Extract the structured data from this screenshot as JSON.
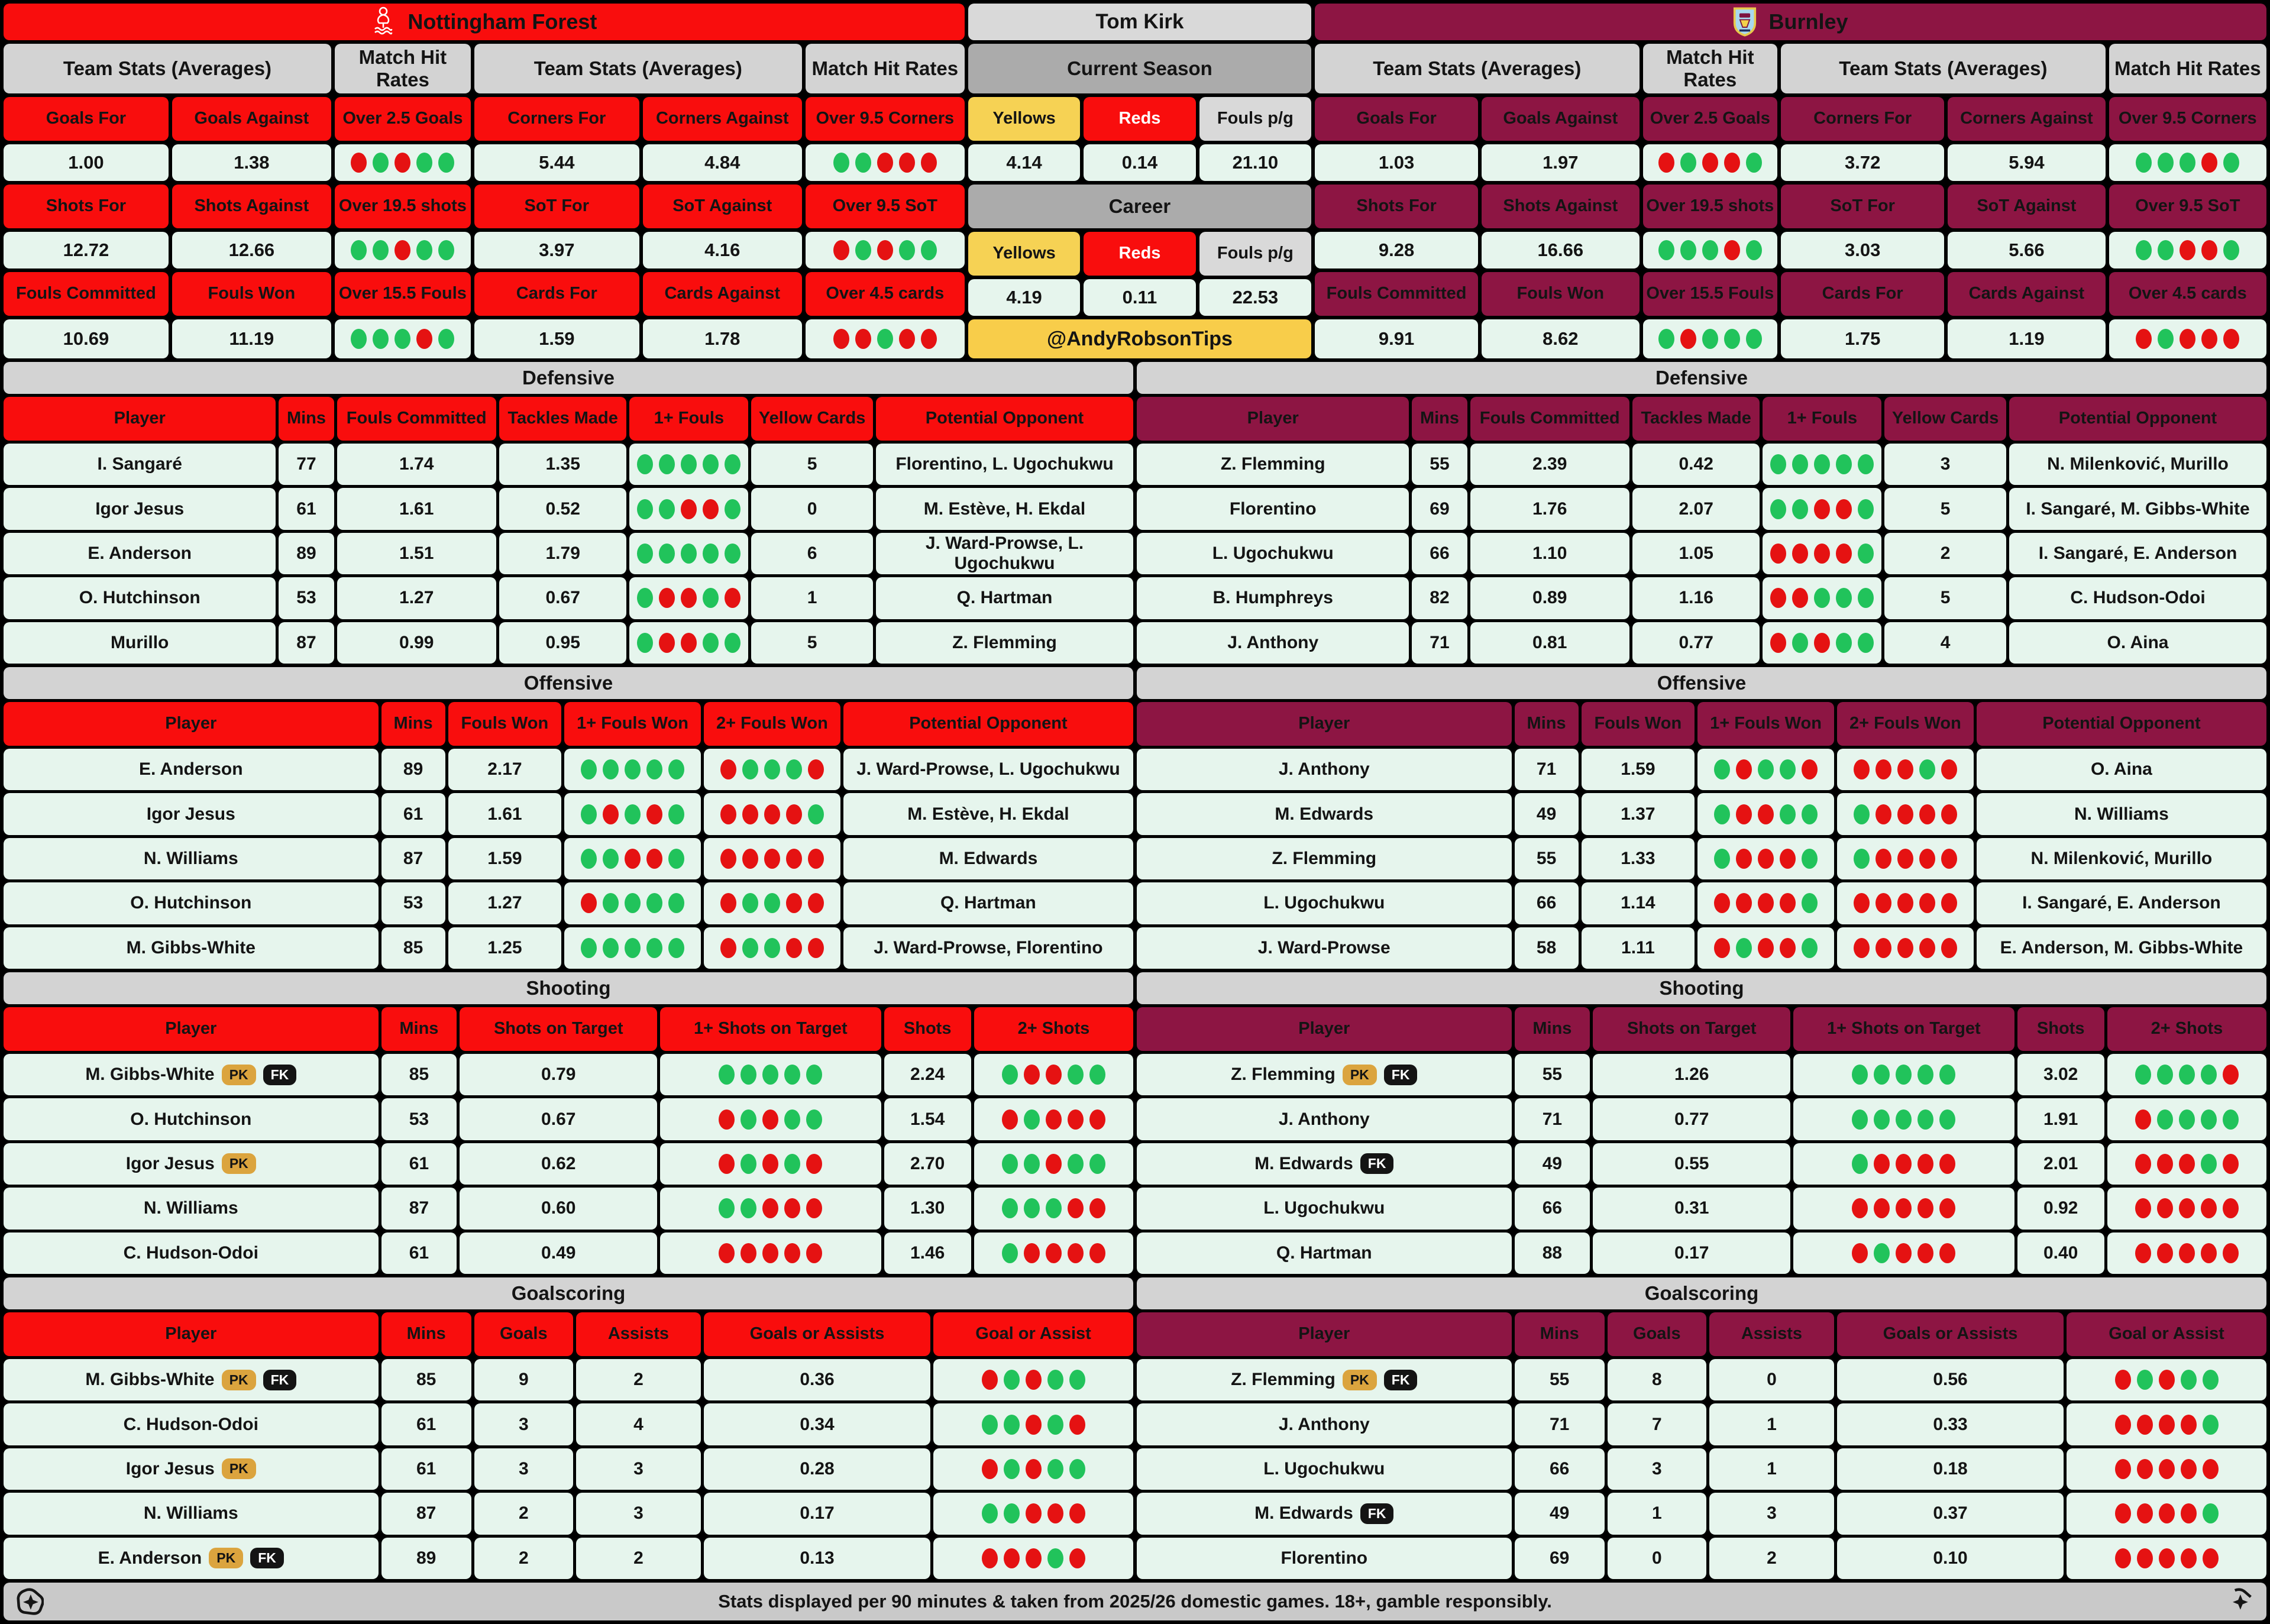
{
  "colors": {
    "forest_red": "#f90d0d",
    "burnley_claret": "#8d1543",
    "dot_green": "#21c35b",
    "dot_red": "#e51212",
    "cell_mint": "#e6f5ed",
    "badge_gold": "#dba43e",
    "yellow_header": "#f6d254",
    "handle_yellow": "#f8cd4a"
  },
  "header": {
    "left_team": "Nottingham Forest",
    "right_team": "Burnley"
  },
  "team_stats": {
    "group_headers": [
      "Team Stats (Averages)",
      "Match Hit Rates",
      "Team Stats (Averages)",
      "Match Hit Rates"
    ],
    "stat_headers": [
      [
        "Goals For",
        "Goals Against",
        "Over 2.5 Goals",
        "Corners For",
        "Corners Against",
        "Over 9.5 Corners"
      ],
      [
        "Shots For",
        "Shots Against",
        "Over 19.5 shots",
        "SoT For",
        "SoT Against",
        "Over 9.5 SoT"
      ],
      [
        "Fouls Committed",
        "Fouls Won",
        "Over 15.5 Fouls",
        "Cards For",
        "Cards Against",
        "Over 4.5 cards"
      ]
    ],
    "left_rows": [
      [
        "1.00",
        "1.38",
        {
          "dots": "RGRGG"
        },
        "5.44",
        "4.84",
        {
          "dots": "GGRRR"
        }
      ],
      [
        "12.72",
        "12.66",
        {
          "dots": "GGRGG"
        },
        "3.97",
        "4.16",
        {
          "dots": "RGRGG"
        }
      ],
      [
        "10.69",
        "11.19",
        {
          "dots": "GGGRG"
        },
        "1.59",
        "1.78",
        {
          "dots": "RRGRR"
        }
      ]
    ],
    "right_rows": [
      [
        "1.03",
        "1.97",
        {
          "dots": "RGRRG"
        },
        "3.72",
        "5.94",
        {
          "dots": "GGGRG"
        }
      ],
      [
        "9.28",
        "16.66",
        {
          "dots": "GGGRG"
        },
        "3.03",
        "5.66",
        {
          "dots": "GGRRG"
        }
      ],
      [
        "9.91",
        "8.62",
        {
          "dots": "GRGGG"
        },
        "1.75",
        "1.19",
        {
          "dots": "RGRRR"
        }
      ]
    ]
  },
  "referee": {
    "name": "Tom Kirk",
    "current_season_label": "Current Season",
    "career_label": "Career",
    "cols": {
      "yellows": "Yellows",
      "reds": "Reds",
      "fouls": "Fouls p/g"
    },
    "current": {
      "yellows": "4.14",
      "reds": "0.14",
      "fouls": "21.10"
    },
    "career": {
      "yellows": "4.19",
      "reds": "0.11",
      "fouls": "22.53"
    },
    "handle": "@AndyRobsonTips"
  },
  "sections": {
    "defensive": {
      "title": "Defensive",
      "headers": [
        "Player",
        "Mins",
        "Fouls Committed",
        "Tackles Made",
        "1+ Fouls",
        "Yellow Cards",
        "Potential Opponent"
      ]
    },
    "offensive": {
      "title": "Offensive",
      "headers": [
        "Player",
        "Mins",
        "Fouls Won",
        "1+ Fouls Won",
        "2+ Fouls Won",
        "Potential Opponent"
      ]
    },
    "shooting": {
      "title": "Shooting",
      "headers": [
        "Player",
        "Mins",
        "Shots on Target",
        "1+ Shots on Target",
        "Shots",
        "2+ Shots"
      ]
    },
    "goalscoring": {
      "title": "Goalscoring",
      "headers": [
        "Player",
        "Mins",
        "Goals",
        "Assists",
        "Goals or Assists",
        "Goal or Assist"
      ]
    }
  },
  "left": {
    "defensive": [
      {
        "player": "I. Sangaré",
        "badges": [],
        "cells": [
          "77",
          "1.74",
          "1.35",
          {
            "dots": "GGGGG"
          },
          "5",
          "Florentino, L. Ugochukwu"
        ]
      },
      {
        "player": "Igor Jesus",
        "badges": [],
        "cells": [
          "61",
          "1.61",
          "0.52",
          {
            "dots": "GGRRG"
          },
          "0",
          "M. Estève, H. Ekdal"
        ]
      },
      {
        "player": "E. Anderson",
        "badges": [],
        "cells": [
          "89",
          "1.51",
          "1.79",
          {
            "dots": "GGGGG"
          },
          "6",
          "J. Ward-Prowse, L. Ugochukwu"
        ]
      },
      {
        "player": "O. Hutchinson",
        "badges": [],
        "cells": [
          "53",
          "1.27",
          "0.67",
          {
            "dots": "GRRGR"
          },
          "1",
          "Q. Hartman"
        ]
      },
      {
        "player": "Murillo",
        "badges": [],
        "cells": [
          "87",
          "0.99",
          "0.95",
          {
            "dots": "GRRGG"
          },
          "5",
          "Z. Flemming"
        ]
      }
    ],
    "offensive": [
      {
        "player": "E. Anderson",
        "badges": [],
        "cells": [
          "89",
          "2.17",
          {
            "dots": "GGGGG"
          },
          {
            "dots": "RGGGR"
          },
          "J. Ward-Prowse, L. Ugochukwu"
        ]
      },
      {
        "player": "Igor Jesus",
        "badges": [],
        "cells": [
          "61",
          "1.61",
          {
            "dots": "GRGRG"
          },
          {
            "dots": "RRRRG"
          },
          "M. Estève, H. Ekdal"
        ]
      },
      {
        "player": "N. Williams",
        "badges": [],
        "cells": [
          "87",
          "1.59",
          {
            "dots": "GGRRG"
          },
          {
            "dots": "RRRRR"
          },
          "M. Edwards"
        ]
      },
      {
        "player": "O. Hutchinson",
        "badges": [],
        "cells": [
          "53",
          "1.27",
          {
            "dots": "RGGGG"
          },
          {
            "dots": "RGGRR"
          },
          "Q. Hartman"
        ]
      },
      {
        "player": "M. Gibbs-White",
        "badges": [],
        "cells": [
          "85",
          "1.25",
          {
            "dots": "GGGGG"
          },
          {
            "dots": "RGGRR"
          },
          "J. Ward-Prowse, Florentino"
        ]
      }
    ],
    "shooting": [
      {
        "player": "M. Gibbs-White",
        "badges": [
          "PK",
          "FK"
        ],
        "cells": [
          "85",
          "0.79",
          {
            "dots": "GGGGG"
          },
          "2.24",
          {
            "dots": "GRRGG"
          }
        ]
      },
      {
        "player": "O. Hutchinson",
        "badges": [],
        "cells": [
          "53",
          "0.67",
          {
            "dots": "RGRGG"
          },
          "1.54",
          {
            "dots": "RGRRR"
          }
        ]
      },
      {
        "player": "Igor Jesus",
        "badges": [
          "PK"
        ],
        "cells": [
          "61",
          "0.62",
          {
            "dots": "RGRGR"
          },
          "2.70",
          {
            "dots": "GGRGG"
          }
        ]
      },
      {
        "player": "N. Williams",
        "badges": [],
        "cells": [
          "87",
          "0.60",
          {
            "dots": "GGRRR"
          },
          "1.30",
          {
            "dots": "GGGRR"
          }
        ]
      },
      {
        "player": "C. Hudson-Odoi",
        "badges": [],
        "cells": [
          "61",
          "0.49",
          {
            "dots": "RRRRR"
          },
          "1.46",
          {
            "dots": "GRRRR"
          }
        ]
      }
    ],
    "goalscoring": [
      {
        "player": "M. Gibbs-White",
        "badges": [
          "PK",
          "FK"
        ],
        "cells": [
          "85",
          "9",
          "2",
          "0.36",
          {
            "dots": "RGRGG"
          }
        ]
      },
      {
        "player": "C. Hudson-Odoi",
        "badges": [],
        "cells": [
          "61",
          "3",
          "4",
          "0.34",
          {
            "dots": "GGRGR"
          }
        ]
      },
      {
        "player": "Igor Jesus",
        "badges": [
          "PK"
        ],
        "cells": [
          "61",
          "3",
          "3",
          "0.28",
          {
            "dots": "RGRGG"
          }
        ]
      },
      {
        "player": "N. Williams",
        "badges": [],
        "cells": [
          "87",
          "2",
          "3",
          "0.17",
          {
            "dots": "GGRRR"
          }
        ]
      },
      {
        "player": "E. Anderson",
        "badges": [
          "PK",
          "FK"
        ],
        "cells": [
          "89",
          "2",
          "2",
          "0.13",
          {
            "dots": "RRRGR"
          }
        ]
      }
    ]
  },
  "right": {
    "defensive": [
      {
        "player": "Z. Flemming",
        "badges": [],
        "cells": [
          "55",
          "2.39",
          "0.42",
          {
            "dots": "GGGGG"
          },
          "3",
          "N. Milenković, Murillo"
        ]
      },
      {
        "player": "Florentino",
        "badges": [],
        "cells": [
          "69",
          "1.76",
          "2.07",
          {
            "dots": "GGRRG"
          },
          "5",
          "I. Sangaré, M. Gibbs-White"
        ]
      },
      {
        "player": "L. Ugochukwu",
        "badges": [],
        "cells": [
          "66",
          "1.10",
          "1.05",
          {
            "dots": "RRRRG"
          },
          "2",
          "I. Sangaré, E. Anderson"
        ]
      },
      {
        "player": "B. Humphreys",
        "badges": [],
        "cells": [
          "82",
          "0.89",
          "1.16",
          {
            "dots": "RRGGG"
          },
          "5",
          "C. Hudson-Odoi"
        ]
      },
      {
        "player": "J. Anthony",
        "badges": [],
        "cells": [
          "71",
          "0.81",
          "0.77",
          {
            "dots": "RGRGG"
          },
          "4",
          "O. Aina"
        ]
      }
    ],
    "offensive": [
      {
        "player": "J. Anthony",
        "badges": [],
        "cells": [
          "71",
          "1.59",
          {
            "dots": "GRGGR"
          },
          {
            "dots": "RRRGR"
          },
          "O. Aina"
        ]
      },
      {
        "player": "M. Edwards",
        "badges": [],
        "cells": [
          "49",
          "1.37",
          {
            "dots": "GRRGG"
          },
          {
            "dots": "GRRRR"
          },
          "N. Williams"
        ]
      },
      {
        "player": "Z. Flemming",
        "badges": [],
        "cells": [
          "55",
          "1.33",
          {
            "dots": "GRRRG"
          },
          {
            "dots": "GRRRR"
          },
          "N. Milenković, Murillo"
        ]
      },
      {
        "player": "L. Ugochukwu",
        "badges": [],
        "cells": [
          "66",
          "1.14",
          {
            "dots": "RRRRG"
          },
          {
            "dots": "RRRRR"
          },
          "I. Sangaré, E. Anderson"
        ]
      },
      {
        "player": "J. Ward-Prowse",
        "badges": [],
        "cells": [
          "58",
          "1.11",
          {
            "dots": "RGRRG"
          },
          {
            "dots": "RRRRR"
          },
          "E. Anderson, M. Gibbs-White"
        ]
      }
    ],
    "shooting": [
      {
        "player": "Z. Flemming",
        "badges": [
          "PK",
          "FK"
        ],
        "cells": [
          "55",
          "1.26",
          {
            "dots": "GGGGG"
          },
          "3.02",
          {
            "dots": "GGGGR"
          }
        ]
      },
      {
        "player": "J. Anthony",
        "badges": [],
        "cells": [
          "71",
          "0.77",
          {
            "dots": "GGGGG"
          },
          "1.91",
          {
            "dots": "RGGGG"
          }
        ]
      },
      {
        "player": "M. Edwards",
        "badges": [
          "FK"
        ],
        "cells": [
          "49",
          "0.55",
          {
            "dots": "GRRRR"
          },
          "2.01",
          {
            "dots": "RRRGR"
          }
        ]
      },
      {
        "player": "L. Ugochukwu",
        "badges": [],
        "cells": [
          "66",
          "0.31",
          {
            "dots": "RRRRR"
          },
          "0.92",
          {
            "dots": "RRRRR"
          }
        ]
      },
      {
        "player": "Q. Hartman",
        "badges": [],
        "cells": [
          "88",
          "0.17",
          {
            "dots": "RGRRR"
          },
          "0.40",
          {
            "dots": "RRRRR"
          }
        ]
      }
    ],
    "goalscoring": [
      {
        "player": "Z. Flemming",
        "badges": [
          "PK",
          "FK"
        ],
        "cells": [
          "55",
          "8",
          "0",
          "0.56",
          {
            "dots": "RGRGG"
          }
        ]
      },
      {
        "player": "J. Anthony",
        "badges": [],
        "cells": [
          "71",
          "7",
          "1",
          "0.33",
          {
            "dots": "RRRRG"
          }
        ]
      },
      {
        "player": "L. Ugochukwu",
        "badges": [],
        "cells": [
          "66",
          "3",
          "1",
          "0.18",
          {
            "dots": "RRRRR"
          }
        ]
      },
      {
        "player": "M. Edwards",
        "badges": [
          "FK"
        ],
        "cells": [
          "49",
          "1",
          "3",
          "0.37",
          {
            "dots": "RRRRG"
          }
        ]
      },
      {
        "player": "Florentino",
        "badges": [],
        "cells": [
          "69",
          "0",
          "2",
          "0.10",
          {
            "dots": "RRRRR"
          }
        ]
      }
    ]
  },
  "footer": {
    "text": "Stats displayed per 90 minutes & taken from 2025/26 domestic games. 18+, gamble responsibly."
  }
}
